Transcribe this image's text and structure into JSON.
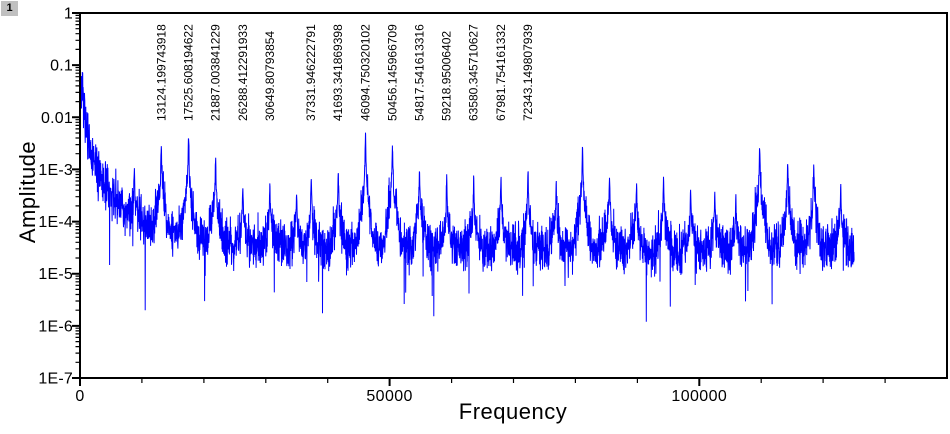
{
  "page": {
    "background": "#FFFFFF",
    "layer_icon": "1"
  },
  "chart_data": {
    "type": "line",
    "title": "",
    "xlabel": "Frequency",
    "ylabel": "Amplitude",
    "legend": "none",
    "grid": "off",
    "line_color": "#0000FF",
    "x_axis": {
      "min": 0,
      "max": 140000,
      "major_ticks": [
        0,
        50000,
        100000
      ],
      "major_tick_labels": [
        "0",
        "50000",
        "100000"
      ],
      "minor_tick_step": 10000,
      "minor_tick_max": 130000
    },
    "y_axis": {
      "scale": "log",
      "min": 1e-07,
      "max": 1,
      "tick_values": [
        1,
        0.1,
        0.01,
        0.001,
        0.0001,
        1e-05,
        1e-06,
        1e-07
      ],
      "tick_labels": [
        "1",
        "0.1",
        "0.01",
        "1E-3",
        "1E-4",
        "1E-5",
        "1E-6",
        "1E-7"
      ]
    },
    "data_max_hz": 125000,
    "synthesis": {
      "points_step_hz": 31.25,
      "noise_seed": 7,
      "noise_sigma_decades": 0.235,
      "dip_probability": 0.005,
      "dip_decades_min": 0.7,
      "dip_decades_span": 1.3,
      "baseline_floor": 2.4e-05,
      "baseline_floor_slope": 0.2,
      "baseline_powerlaw_A": 2240,
      "baseline_powerlaw_p": 1.86,
      "baseline_cap": 0.042,
      "lorentz_halfwidth_hz": 55,
      "skirt_sigma_hz": 700,
      "skirt_factor": 0.09,
      "skirt_cap": 0.00028
    },
    "peaks": [
      {
        "freq": 4401,
        "amp": 0.00025
      },
      {
        "freq": 8770,
        "amp": 0.0008
      },
      {
        "freq": 13124.199743918,
        "amp": 0.0025,
        "label": "13124.199743918"
      },
      {
        "freq": 17525.608194622,
        "amp": 0.0041,
        "label": "17525.608194622"
      },
      {
        "freq": 21887.003841229,
        "amp": 0.0014,
        "label": "21887.003841229"
      },
      {
        "freq": 26288.412291933,
        "amp": 0.0004,
        "label": "26288.412291933"
      },
      {
        "freq": 30649.80793854,
        "amp": 0.00045,
        "label": "30649.80793854"
      },
      {
        "freq": 34970,
        "amp": 0.0003
      },
      {
        "freq": 37331.946222791,
        "amp": 0.0006,
        "label": "37331.946222791"
      },
      {
        "freq": 41693.341869398,
        "amp": 0.0008,
        "label": "41693.341869398"
      },
      {
        "freq": 46094.750320102,
        "amp": 0.0048,
        "label": "46094.750320102"
      },
      {
        "freq": 50456.145966709,
        "amp": 0.0029,
        "label": "50456.145966709"
      },
      {
        "freq": 54817.541613316,
        "amp": 0.0009,
        "label": "54817.541613316"
      },
      {
        "freq": 59218.95006402,
        "amp": 0.0006,
        "label": "59218.95006402"
      },
      {
        "freq": 63580.345710627,
        "amp": 0.0005,
        "label": "63580.345710627"
      },
      {
        "freq": 67981.754161332,
        "amp": 0.0006,
        "label": "67981.754161332"
      },
      {
        "freq": 72343.149807939,
        "amp": 0.00075,
        "label": "72343.149807939"
      },
      {
        "freq": 76900,
        "amp": 0.00045
      },
      {
        "freq": 81150,
        "amp": 0.0021
      },
      {
        "freq": 85500,
        "amp": 0.00065
      },
      {
        "freq": 89870,
        "amp": 0.00045
      },
      {
        "freq": 94230,
        "amp": 0.0006
      },
      {
        "freq": 98600,
        "amp": 0.00035
      },
      {
        "freq": 102500,
        "amp": 0.0003
      },
      {
        "freq": 105900,
        "amp": 0.00025
      },
      {
        "freq": 109750,
        "amp": 0.0026
      },
      {
        "freq": 114280,
        "amp": 0.0013
      },
      {
        "freq": 118480,
        "amp": 0.0011
      },
      {
        "freq": 122840,
        "amp": 0.0005
      }
    ]
  }
}
